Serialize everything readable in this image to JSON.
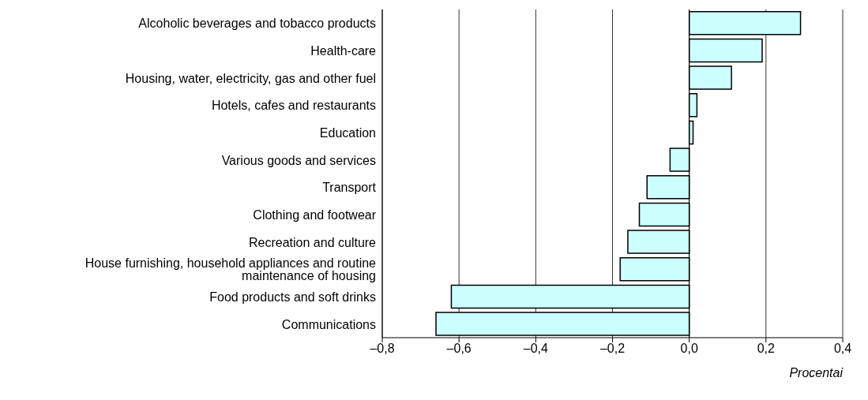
{
  "chart_data": {
    "type": "bar",
    "orientation": "horizontal",
    "categories": [
      "Alcoholic beverages and tobacco products",
      "Health-care",
      "Housing, water, electricity, gas and other fuel",
      "Hotels, cafes and restaurants",
      "Education",
      "Various goods and services",
      "Transport",
      "Clothing and footwear",
      "Recreation and culture",
      "House furnishing, household appliances and routine maintenance of housing",
      "Food products and soft drinks",
      "Communications"
    ],
    "values": [
      0.29,
      0.19,
      0.11,
      0.02,
      0.01,
      -0.05,
      -0.11,
      -0.13,
      -0.16,
      -0.18,
      -0.62,
      -0.66
    ],
    "color": "#ccffff",
    "xlabel": "Procentai",
    "xlim": [
      -0.8,
      0.4
    ],
    "xticks": [
      {
        "value": -0.8,
        "label": "–0,8"
      },
      {
        "value": -0.6,
        "label": "–0,6"
      },
      {
        "value": -0.4,
        "label": "–0,4"
      },
      {
        "value": -0.2,
        "label": "–0,2"
      },
      {
        "value": 0,
        "label": "0,0"
      },
      {
        "value": 0.2,
        "label": "0,2"
      },
      {
        "value": 0.4,
        "label": "0,4"
      }
    ],
    "grid": "x"
  }
}
